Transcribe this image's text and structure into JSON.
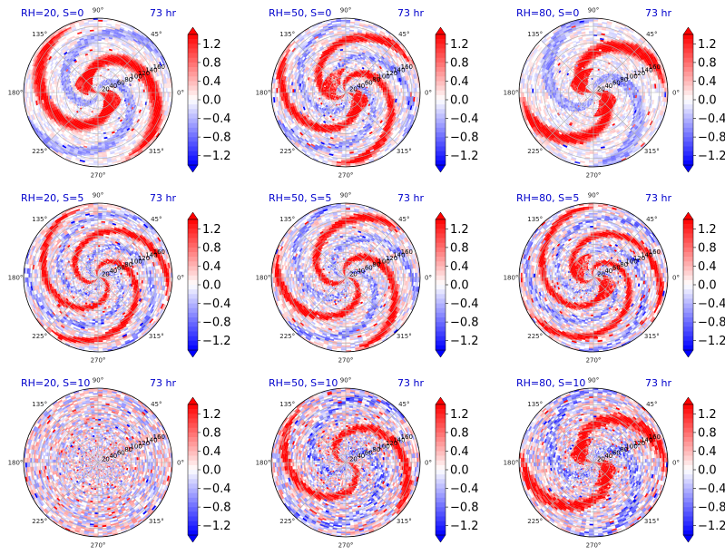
{
  "figure": {
    "colormap": "bwr",
    "colors": {
      "title": "#0000cc",
      "positive": "#ff0000",
      "negative": "#0000ff",
      "neutral": "#ffffff"
    }
  },
  "chart_data": [
    {
      "type": "heatmap",
      "projection": "polar",
      "title": "RH=20, S=0",
      "time_label": "73 hr",
      "angular_ticks": [
        "90°",
        "45°",
        "0°",
        "315°",
        "270°",
        "225°",
        "180°",
        "135°"
      ],
      "radial_ticks": [
        20,
        40,
        60,
        80,
        100,
        120,
        140,
        160
      ],
      "rlim": [
        0,
        180
      ],
      "colorbar": {
        "ticks": [
          1.2,
          0.8,
          0.4,
          0.0,
          -0.4,
          -0.8,
          -1.2
        ],
        "labels": [
          "1.2",
          "0.8",
          "0.4",
          "0.0",
          "−0.4",
          "−0.8",
          "−1.2"
        ],
        "range": [
          -1.4,
          1.4
        ],
        "extend": "both"
      }
    },
    {
      "type": "heatmap",
      "projection": "polar",
      "title": "RH=50, S=0",
      "time_label": "73 hr",
      "angular_ticks": [
        "90°",
        "45°",
        "0°",
        "315°",
        "270°",
        "225°",
        "180°",
        "135°"
      ],
      "radial_ticks": [
        20,
        40,
        60,
        80,
        100,
        120,
        140,
        160
      ],
      "rlim": [
        0,
        180
      ],
      "colorbar": {
        "ticks": [
          1.2,
          0.8,
          0.4,
          0.0,
          -0.4,
          -0.8,
          -1.2
        ],
        "labels": [
          "1.2",
          "0.8",
          "0.4",
          "0.0",
          "−0.4",
          "−0.8",
          "−1.2"
        ],
        "range": [
          -1.4,
          1.4
        ],
        "extend": "both"
      }
    },
    {
      "type": "heatmap",
      "projection": "polar",
      "title": "RH=80, S=0",
      "time_label": "73 hr",
      "angular_ticks": [
        "90°",
        "45°",
        "0°",
        "315°",
        "270°",
        "225°",
        "180°",
        "135°"
      ],
      "radial_ticks": [
        20,
        40,
        60,
        80,
        100,
        120,
        140,
        160
      ],
      "rlim": [
        0,
        180
      ],
      "colorbar": {
        "ticks": [
          1.2,
          0.8,
          0.4,
          0.0,
          -0.4,
          -0.8,
          -1.2
        ],
        "labels": [
          "1.2",
          "0.8",
          "0.4",
          "0.0",
          "−0.4",
          "−0.8",
          "−1.2"
        ],
        "range": [
          -1.4,
          1.4
        ],
        "extend": "both"
      }
    },
    {
      "type": "heatmap",
      "projection": "polar",
      "title": "RH=20, S=5",
      "time_label": "73 hr",
      "angular_ticks": [
        "90°",
        "45°",
        "0°",
        "315°",
        "270°",
        "225°",
        "180°",
        "135°"
      ],
      "radial_ticks": [
        20,
        40,
        60,
        80,
        100,
        120,
        140,
        160
      ],
      "rlim": [
        0,
        180
      ],
      "colorbar": {
        "ticks": [
          1.2,
          0.8,
          0.4,
          0.0,
          -0.4,
          -0.8,
          -1.2
        ],
        "labels": [
          "1.2",
          "0.8",
          "0.4",
          "0.0",
          "−0.4",
          "−0.8",
          "−1.2"
        ],
        "range": [
          -1.4,
          1.4
        ],
        "extend": "both"
      }
    },
    {
      "type": "heatmap",
      "projection": "polar",
      "title": "RH=50, S=5",
      "time_label": "73 hr",
      "angular_ticks": [
        "90°",
        "45°",
        "0°",
        "315°",
        "270°",
        "225°",
        "180°",
        "135°"
      ],
      "radial_ticks": [
        20,
        40,
        60,
        80,
        100,
        120,
        140,
        160
      ],
      "rlim": [
        0,
        180
      ],
      "colorbar": {
        "ticks": [
          1.2,
          0.8,
          0.4,
          0.0,
          -0.4,
          -0.8,
          -1.2
        ],
        "labels": [
          "1.2",
          "0.8",
          "0.4",
          "0.0",
          "−0.4",
          "−0.8",
          "−1.2"
        ],
        "range": [
          -1.4,
          1.4
        ],
        "extend": "both"
      }
    },
    {
      "type": "heatmap",
      "projection": "polar",
      "title": "RH=80, S=5",
      "time_label": "73 hr",
      "angular_ticks": [
        "90°",
        "45°",
        "0°",
        "315°",
        "270°",
        "225°",
        "180°",
        "135°"
      ],
      "radial_ticks": [
        20,
        40,
        60,
        80,
        100,
        120,
        140,
        160
      ],
      "rlim": [
        0,
        180
      ],
      "colorbar": {
        "ticks": [
          1.2,
          0.8,
          0.4,
          0.0,
          -0.4,
          -0.8,
          -1.2
        ],
        "labels": [
          "1.2",
          "0.8",
          "0.4",
          "0.0",
          "−0.4",
          "−0.8",
          "−1.2"
        ],
        "range": [
          -1.4,
          1.4
        ],
        "extend": "both"
      }
    },
    {
      "type": "heatmap",
      "projection": "polar",
      "title": "RH=20, S=10",
      "time_label": "73 hr",
      "angular_ticks": [
        "90°",
        "45°",
        "0°",
        "315°",
        "270°",
        "225°",
        "180°",
        "135°"
      ],
      "radial_ticks": [
        20,
        40,
        60,
        80,
        100,
        120,
        140,
        160
      ],
      "rlim": [
        0,
        180
      ],
      "colorbar": {
        "ticks": [
          1.2,
          0.8,
          0.4,
          0.0,
          -0.4,
          -0.8,
          -1.2
        ],
        "labels": [
          "1.2",
          "0.8",
          "0.4",
          "0.0",
          "−0.4",
          "−0.8",
          "−1.2"
        ],
        "range": [
          -1.4,
          1.4
        ],
        "extend": "both"
      }
    },
    {
      "type": "heatmap",
      "projection": "polar",
      "title": "RH=50, S=10",
      "time_label": "73 hr",
      "angular_ticks": [
        "90°",
        "45°",
        "0°",
        "315°",
        "270°",
        "225°",
        "180°",
        "135°"
      ],
      "radial_ticks": [
        20,
        40,
        60,
        80,
        100,
        120,
        140,
        160
      ],
      "rlim": [
        0,
        180
      ],
      "colorbar": {
        "ticks": [
          1.2,
          0.8,
          0.4,
          0.0,
          -0.4,
          -0.8,
          -1.2
        ],
        "labels": [
          "1.2",
          "0.8",
          "0.4",
          "0.0",
          "−0.4",
          "−0.8",
          "−1.2"
        ],
        "range": [
          -1.4,
          1.4
        ],
        "extend": "both"
      }
    },
    {
      "type": "heatmap",
      "projection": "polar",
      "title": "RH=80, S=10",
      "time_label": "73 hr",
      "angular_ticks": [
        "90°",
        "45°",
        "0°",
        "315°",
        "270°",
        "225°",
        "180°",
        "135°"
      ],
      "radial_ticks": [
        20,
        40,
        60,
        80,
        100,
        120,
        140,
        160
      ],
      "rlim": [
        0,
        180
      ],
      "colorbar": {
        "ticks": [
          1.2,
          0.8,
          0.4,
          0.0,
          -0.4,
          -0.8,
          -1.2
        ],
        "labels": [
          "1.2",
          "0.8",
          "0.4",
          "0.0",
          "−0.4",
          "−0.8",
          "−1.2"
        ],
        "range": [
          -1.4,
          1.4
        ],
        "extend": "both"
      }
    }
  ]
}
